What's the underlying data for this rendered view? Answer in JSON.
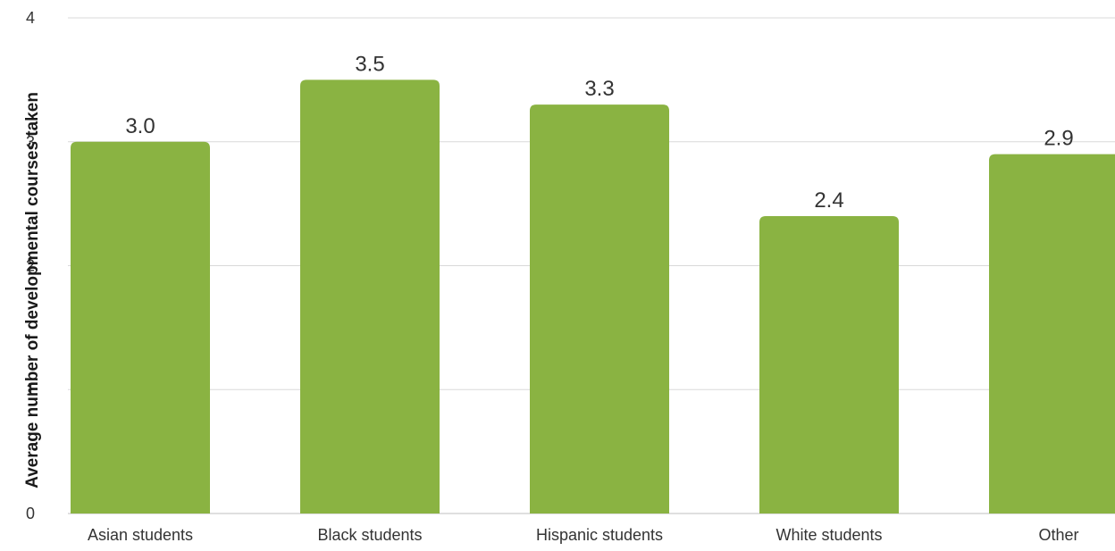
{
  "chart_data": {
    "type": "bar",
    "title": "",
    "xlabel": "",
    "ylabel": "Average number of developmental courses taken",
    "categories": [
      "Asian students",
      "Black students",
      "Hispanic students",
      "White students",
      "Other"
    ],
    "values": [
      3.0,
      3.5,
      3.3,
      2.4,
      2.9
    ],
    "value_labels": [
      "3.0",
      "3.5",
      "3.3",
      "2.4",
      "2.9"
    ],
    "ylim": [
      0,
      4
    ],
    "yticks": [
      0,
      1,
      2,
      3,
      4
    ],
    "ytick_labels": [
      "0",
      "1",
      "2",
      "3",
      "4"
    ],
    "grid": true,
    "legend": "none",
    "bar_color": "#8ab342"
  }
}
